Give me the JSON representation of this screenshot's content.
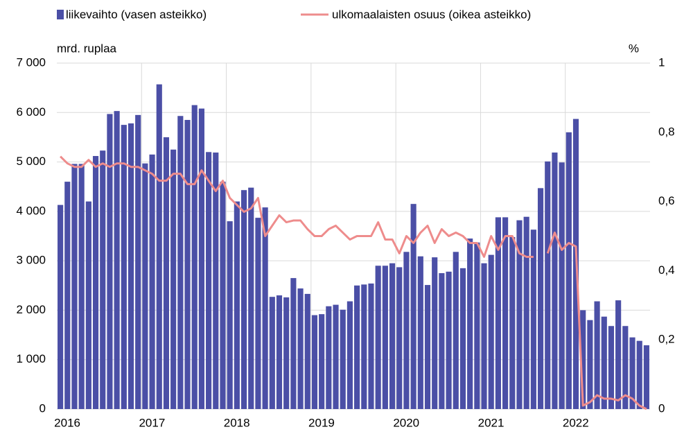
{
  "chart_data": {
    "type": "bar_line",
    "y_label": "mrd. ruplaa",
    "y2_label": "%",
    "categories": [
      "2016",
      null,
      null,
      null,
      null,
      null,
      null,
      null,
      null,
      null,
      null,
      null,
      "2017",
      null,
      null,
      null,
      null,
      null,
      null,
      null,
      null,
      null,
      null,
      null,
      "2018",
      null,
      null,
      null,
      null,
      null,
      null,
      null,
      null,
      null,
      null,
      null,
      "2019",
      null,
      null,
      null,
      null,
      null,
      null,
      null,
      null,
      null,
      null,
      null,
      "2020",
      null,
      null,
      null,
      null,
      null,
      null,
      null,
      null,
      null,
      null,
      null,
      "2021",
      null,
      null,
      null,
      null,
      null,
      null,
      null,
      null,
      null,
      null,
      null,
      "2022",
      null,
      null,
      null,
      null,
      null,
      null,
      null,
      null,
      null,
      null,
      null
    ],
    "series": [
      {
        "name": "liikevaihto (vasen asteikko)",
        "type": "bar",
        "color": "#4b4fa6",
        "axis": "y",
        "values": [
          4130,
          4600,
          4960,
          4960,
          4200,
          5120,
          5230,
          5970,
          6030,
          5750,
          5780,
          5950,
          4970,
          5150,
          6570,
          5500,
          5250,
          5930,
          5850,
          6150,
          6080,
          5200,
          5190,
          4600,
          3800,
          4200,
          4430,
          4480,
          3870,
          4080,
          2270,
          2300,
          2260,
          2650,
          2440,
          2330,
          1900,
          1920,
          2080,
          2110,
          2010,
          2180,
          2500,
          2520,
          2540,
          2900,
          2900,
          2950,
          2870,
          3180,
          4150,
          3090,
          2510,
          3070,
          2750,
          2780,
          3180,
          2850,
          3450,
          3370,
          2950,
          3120,
          3880,
          3880,
          3480,
          3820,
          3890,
          3630,
          4470,
          5010,
          5190,
          4990,
          5600,
          5870,
          2000,
          1800,
          2180,
          1870,
          1680,
          2200,
          1680,
          1450,
          1380,
          1290
        ]
      },
      {
        "name": "ulkomaalaisten osuus (oikea asteikko)",
        "type": "line",
        "color": "#ee8c8c",
        "axis": "y2",
        "values": [
          0.73,
          0.71,
          0.7,
          0.7,
          0.72,
          0.7,
          0.71,
          0.7,
          0.71,
          0.71,
          0.7,
          0.7,
          0.69,
          0.68,
          0.66,
          0.66,
          0.68,
          0.68,
          0.65,
          0.65,
          0.69,
          0.66,
          0.63,
          0.66,
          0.61,
          0.59,
          0.57,
          0.58,
          0.61,
          0.5,
          0.53,
          0.56,
          0.54,
          0.545,
          0.545,
          0.52,
          0.5,
          0.5,
          0.52,
          0.53,
          0.51,
          0.49,
          0.5,
          0.5,
          0.5,
          0.54,
          0.49,
          0.49,
          0.45,
          0.5,
          0.48,
          0.51,
          0.53,
          0.48,
          0.52,
          0.5,
          0.51,
          0.5,
          0.48,
          0.48,
          0.44,
          0.5,
          0.46,
          0.5,
          0.5,
          0.45,
          0.44,
          0.44,
          null,
          0.45,
          0.51,
          0.46,
          0.48,
          0.47,
          0.01,
          0.02,
          0.04,
          0.03,
          0.03,
          0.025,
          0.04,
          0.03,
          0.01,
          0.0
        ]
      }
    ],
    "ylim": [
      0,
      7000
    ],
    "yticks": [
      0,
      {
        "value": 1000,
        "label": "1 000"
      },
      {
        "value": 2000,
        "label": "2 000"
      },
      {
        "value": 3000,
        "label": "3 000"
      },
      {
        "value": 4000,
        "label": "4 000"
      },
      {
        "value": 5000,
        "label": "5 000"
      },
      {
        "value": 6000,
        "label": "6 000"
      },
      {
        "value": 7000,
        "label": "7 000"
      }
    ],
    "y2lim": [
      0,
      1
    ],
    "y2ticks": [
      0,
      {
        "value": 0.2,
        "label": "0,2"
      },
      {
        "value": 0.4,
        "label": "0,4"
      },
      {
        "value": 0.6,
        "label": "0,6"
      },
      {
        "value": 0.8,
        "label": "0,8"
      },
      1
    ],
    "grid": true,
    "legend": "top"
  }
}
